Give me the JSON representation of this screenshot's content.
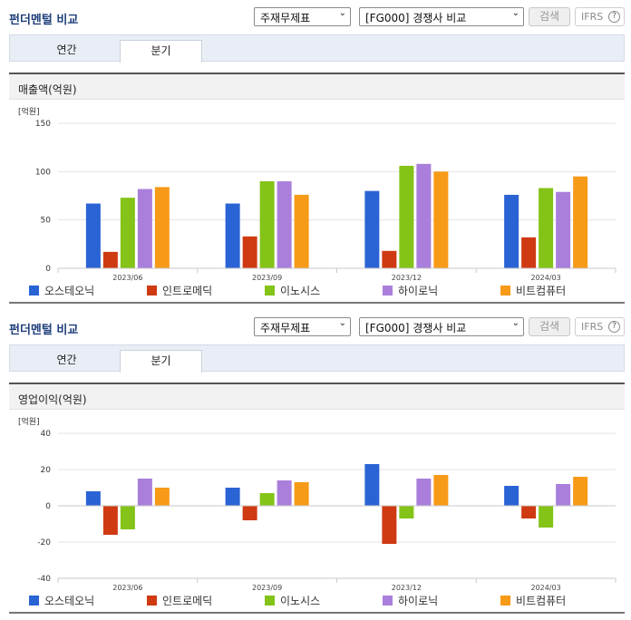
{
  "panels": [
    {
      "title": "펀더멘털 비교",
      "select1": "주재무제표",
      "select2": "[FG000] 경쟁사 비교",
      "search_label": "검색",
      "ifrs_label": "IFRS",
      "ifrs_help": "?",
      "tabs": [
        "연간",
        "분기"
      ],
      "chart_header": "매출액(억원)"
    },
    {
      "title": "펀더멘털 비교",
      "select1": "주재무제표",
      "select2": "[FG000] 경쟁사 비교",
      "search_label": "검색",
      "ifrs_label": "IFRS",
      "ifrs_help": "?",
      "tabs": [
        "연간",
        "분기"
      ],
      "chart_header": "영업이익(억원)"
    }
  ],
  "chart_data": [
    {
      "type": "bar",
      "title": "매출액(억원)",
      "unit_label": "[억원]",
      "categories": [
        "2023/06",
        "2023/09",
        "2023/12",
        "2024/03"
      ],
      "ylim": [
        0,
        150
      ],
      "yticks": [
        0,
        50,
        100,
        150
      ],
      "grid": true,
      "legend_position": "bottom",
      "series": [
        {
          "name": "오스테오닉",
          "color": "#2a63d4",
          "values": [
            67,
            67,
            80,
            76
          ]
        },
        {
          "name": "인트로메딕",
          "color": "#cf3a12",
          "values": [
            17,
            33,
            18,
            32
          ]
        },
        {
          "name": "이노시스",
          "color": "#84c318",
          "values": [
            73,
            90,
            106,
            83
          ]
        },
        {
          "name": "하이로닉",
          "color": "#a97fdb",
          "values": [
            82,
            90,
            108,
            79
          ]
        },
        {
          "name": "비트컴퓨터",
          "color": "#f79a17",
          "values": [
            84,
            76,
            100,
            95
          ]
        }
      ]
    },
    {
      "type": "bar",
      "title": "영업이익(억원)",
      "unit_label": "[억원]",
      "categories": [
        "2023/06",
        "2023/09",
        "2023/12",
        "2024/03"
      ],
      "ylim": [
        -40,
        40
      ],
      "yticks": [
        -40,
        -20,
        0,
        20,
        40
      ],
      "grid": true,
      "legend_position": "bottom",
      "series": [
        {
          "name": "오스테오닉",
          "color": "#2a63d4",
          "values": [
            8,
            10,
            23,
            11
          ]
        },
        {
          "name": "인트로메딕",
          "color": "#cf3a12",
          "values": [
            -16,
            -8,
            -21,
            -7
          ]
        },
        {
          "name": "이노시스",
          "color": "#84c318",
          "values": [
            -13,
            7,
            -7,
            -12
          ]
        },
        {
          "name": "하이로닉",
          "color": "#a97fdb",
          "values": [
            15,
            14,
            15,
            12
          ]
        },
        {
          "name": "비트컴퓨터",
          "color": "#f79a17",
          "values": [
            10,
            13,
            17,
            16
          ]
        }
      ]
    }
  ]
}
